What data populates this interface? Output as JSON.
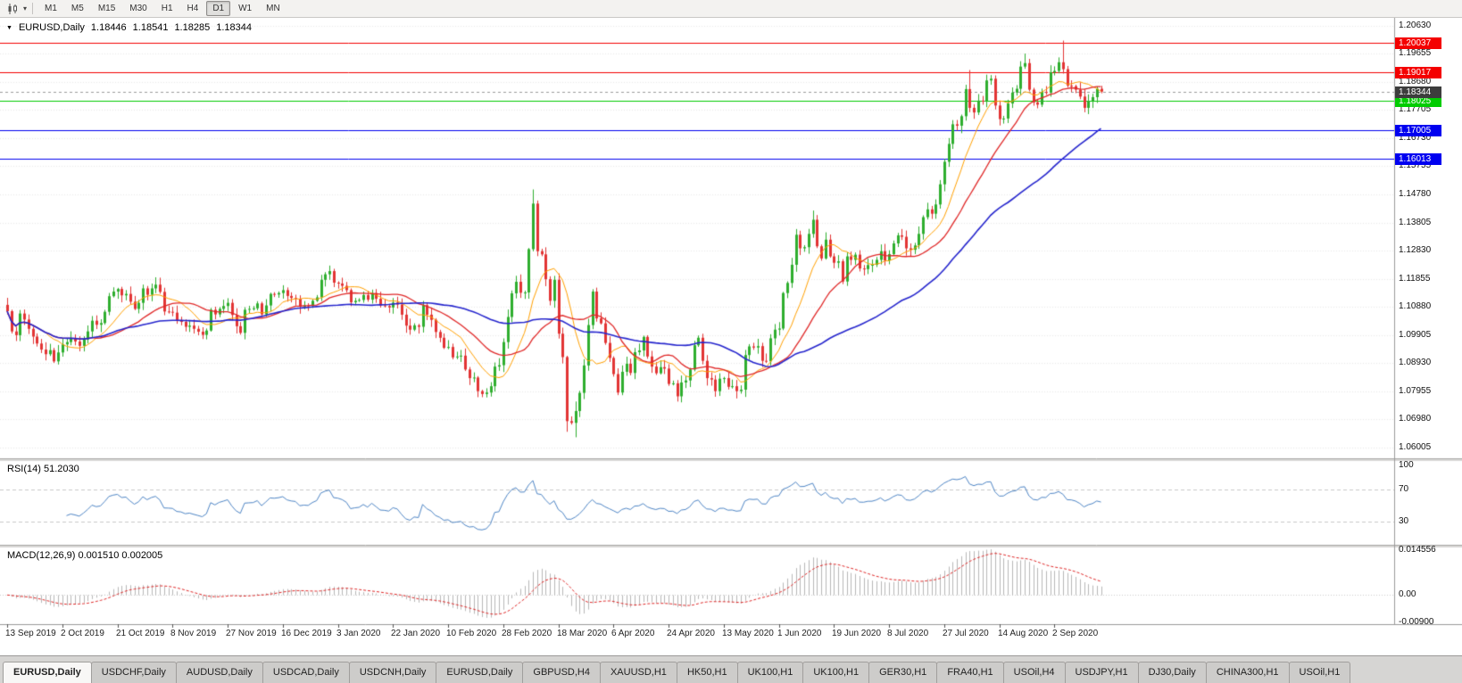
{
  "toolbar": {
    "caret_glyph": "▾",
    "timeframes": {
      "active": "D1",
      "items": [
        "M1",
        "M5",
        "M15",
        "M30",
        "H1",
        "H4",
        "D1",
        "W1",
        "MN"
      ]
    }
  },
  "chart": {
    "quote": {
      "marker": "▼",
      "symbol": "EURUSD,Daily",
      "open": "1.18446",
      "high": "1.18541",
      "low": "1.18285",
      "close": "1.18344"
    },
    "price_scale": [
      "1.20630",
      "1.19655",
      "1.18680",
      "1.17705",
      "1.16730",
      "1.15755",
      "1.14780",
      "1.13805",
      "1.12830",
      "1.11855",
      "1.10880",
      "1.09905",
      "1.08930",
      "1.07955",
      "1.06980",
      "1.06005"
    ],
    "levels": [
      {
        "value": "1.20037",
        "color": "#f40000"
      },
      {
        "value": "1.19017",
        "color": "#f40000"
      },
      {
        "value": "1.18025",
        "color": "#00cc00"
      },
      {
        "value": "1.17005",
        "color": "#0000f0"
      },
      {
        "value": "1.16013",
        "color": "#0000f0"
      }
    ],
    "current_price_tag": {
      "value": "1.18344",
      "color": "#3d3d3d"
    },
    "colors": {
      "up": "#2eae2e",
      "down": "#e23434",
      "ma_fast": "#ffa000",
      "ma_med": "#e02828",
      "ma_slow": "#2525cd",
      "rsi": "#4f86c6",
      "macd_hist": "#b8b8b8",
      "macd_signal": "#e02828",
      "grid": "#e9e9e9"
    }
  },
  "rsi": {
    "label": "RSI(14) 51.2030",
    "scale": [
      "100",
      "70",
      "30"
    ],
    "guides": [
      70,
      30
    ]
  },
  "macd": {
    "label": "MACD(12,26,9) 0.001510 0.002005",
    "scale": [
      "0.014556",
      "0.00",
      "-0.00900"
    ]
  },
  "tabs": {
    "active_index": 0,
    "items": [
      "EURUSD,Daily",
      "USDCHF,Daily",
      "AUDUSD,Daily",
      "USDCAD,Daily",
      "USDCNH,Daily",
      "EURUSD,Daily",
      "GBPUSD,H4",
      "XAUUSD,H1",
      "HK50,H1",
      "UK100,H1",
      "UK100,H1",
      "GER30,H1",
      "FRA40,H1",
      "USOil,H4",
      "USDJPY,H1",
      "DJ30,Daily",
      "CHINA300,H1",
      "USOil,H1"
    ]
  },
  "chart_data": {
    "type": "candlestick",
    "symbol": "EURUSD",
    "timeframe": "Daily",
    "last_candle": {
      "open": 1.18446,
      "high": 1.18541,
      "low": 1.18285,
      "close": 1.18344
    },
    "price_axis_range": [
      1.056,
      1.209
    ],
    "horizontal_levels": [
      1.20037,
      1.19017,
      1.18025,
      1.17005,
      1.16013
    ],
    "x_labels": [
      "13 Sep 2019",
      "2 Oct 2019",
      "21 Oct 2019",
      "8 Nov 2019",
      "27 Nov 2019",
      "16 Dec 2019",
      "3 Jan 2020",
      "22 Jan 2020",
      "10 Feb 2020",
      "28 Feb 2020",
      "18 Mar 2020",
      "6 Apr 2020",
      "24 Apr 2020",
      "13 May 2020",
      "1 Jun 2020",
      "19 Jun 2020",
      "8 Jul 2020",
      "27 Jul 2020",
      "14 Aug 2020",
      "2 Sep 2020"
    ],
    "candles_per_tick": 13,
    "first_open": 1.1095,
    "closes": [
      1.1073,
      1.1003,
      1.099,
      1.1065,
      1.1044,
      1.1012,
      1.0985,
      1.0961,
      1.094,
      1.0924,
      1.0938,
      1.0899,
      1.093,
      1.0958,
      1.0966,
      1.0979,
      1.0968,
      1.0953,
      1.0975,
      1.1003,
      1.104,
      1.1026,
      1.1032,
      1.1071,
      1.1125,
      1.1141,
      1.115,
      1.1128,
      1.1133,
      1.1106,
      1.1081,
      1.1102,
      1.1152,
      1.113,
      1.1152,
      1.1165,
      1.114,
      1.1072,
      1.1071,
      1.1068,
      1.104,
      1.1036,
      1.1019,
      1.1023,
      1.1012,
      1.1002,
      1.0991,
      1.1006,
      1.1078,
      1.1062,
      1.1081,
      1.1091,
      1.1102,
      1.106,
      1.1021,
      1.0998,
      1.1078,
      1.1081,
      1.1083,
      1.11,
      1.1062,
      1.1093,
      1.1133,
      1.1131,
      1.1136,
      1.1146,
      1.1126,
      1.1119,
      1.1116,
      1.1089,
      1.1093,
      1.1091,
      1.1109,
      1.1121,
      1.1182,
      1.1201,
      1.1212,
      1.1172,
      1.1169,
      1.1161,
      1.1146,
      1.1104,
      1.1109,
      1.1112,
      1.1129,
      1.1113,
      1.1136,
      1.1116,
      1.1093,
      1.1091,
      1.1086,
      1.1103,
      1.1096,
      1.1061,
      1.1023,
      1.1009,
      1.1024,
      1.1019,
      1.1094,
      1.1061,
      1.1043,
      1.1001,
      1.0981,
      1.0946,
      1.0949,
      1.0913,
      1.0916,
      1.0919,
      1.0871,
      1.0841,
      1.0843,
      1.0796,
      1.0786,
      1.0791,
      1.0813,
      1.0881,
      1.0886,
      1.0966,
      1.1053,
      1.1135,
      1.1175,
      1.1137,
      1.1138,
      1.1288,
      1.1446,
      1.1281,
      1.127,
      1.1184,
      1.1109,
      1.1182,
      1.0995,
      1.0914,
      1.0692,
      1.0686,
      1.0727,
      1.079,
      1.0885,
      1.1025,
      1.1141,
      1.1048,
      1.1031,
      1.0963,
      1.0911,
      1.0855,
      1.0791,
      1.0863,
      1.0891,
      1.0859,
      1.0931,
      1.0937,
      1.0984,
      1.0916,
      1.0881,
      1.0858,
      1.0879,
      1.0874,
      1.0821,
      1.0823,
      1.0778,
      1.0826,
      1.0833,
      1.0871,
      1.0955,
      1.0981,
      1.0901,
      1.0841,
      1.0836,
      1.0796,
      1.0839,
      1.0841,
      1.0811,
      1.0813,
      1.0796,
      1.0801,
      1.0921,
      1.0951,
      1.0947,
      1.0952,
      1.0901,
      1.0899,
      1.0979,
      1.1009,
      1.1013,
      1.1136,
      1.1171,
      1.1234,
      1.1338,
      1.1291,
      1.1295,
      1.1341,
      1.139,
      1.1298,
      1.1256,
      1.1321,
      1.1263,
      1.1241,
      1.1246,
      1.1176,
      1.1263,
      1.1251,
      1.1269,
      1.1221,
      1.1219,
      1.1233,
      1.1234,
      1.1251,
      1.1281,
      1.1249,
      1.1271,
      1.1308,
      1.1336,
      1.1331,
      1.1291,
      1.1286,
      1.1301,
      1.1341,
      1.1399,
      1.1426,
      1.1411,
      1.1443,
      1.1513,
      1.1591,
      1.1653,
      1.1721,
      1.1716,
      1.1749,
      1.1843,
      1.1778,
      1.1762,
      1.1803,
      1.1801,
      1.1873,
      1.1879,
      1.1786,
      1.1739,
      1.1741,
      1.1793,
      1.1831,
      1.1844,
      1.1921,
      1.1933,
      1.1841,
      1.1797,
      1.1789,
      1.1833,
      1.1831,
      1.1901,
      1.1906,
      1.1936,
      1.1912,
      1.1855,
      1.1853,
      1.1841,
      1.1817,
      1.1778,
      1.1802,
      1.1815,
      1.1844,
      1.18344
    ],
    "wick_overrides": {
      "112": {
        "l": 1.0775
      },
      "124": {
        "h": 1.1495
      },
      "132": {
        "l": 1.0655
      },
      "134": {
        "h": 1.076,
        "l": 1.0636
      },
      "190": {
        "h": 1.1422
      },
      "227": {
        "h": 1.1909
      },
      "240": {
        "h": 1.1966
      },
      "249": {
        "h": 1.2011
      },
      "258": {
        "h": 1.18541,
        "l": 1.18285
      }
    },
    "moving_averages": [
      {
        "period": 10,
        "color_key": "ma_fast"
      },
      {
        "period": 21,
        "color_key": "ma_med"
      },
      {
        "period": 50,
        "color_key": "ma_slow"
      }
    ],
    "rsi": {
      "period": 14,
      "current": 51.203,
      "display_range": [
        0,
        105
      ]
    },
    "macd": {
      "fast": 12,
      "slow": 26,
      "signal": 9,
      "current": [
        0.00151,
        0.002005
      ],
      "display_range": [
        -0.0095,
        0.0155
      ]
    }
  }
}
